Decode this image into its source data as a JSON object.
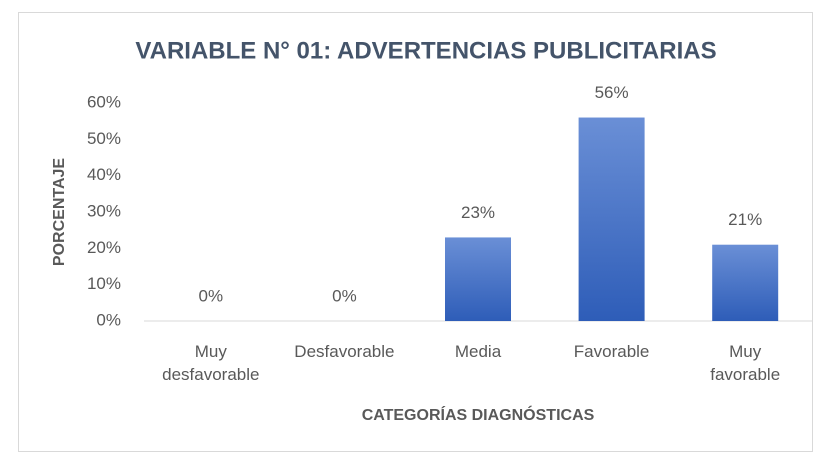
{
  "chart_data": {
    "type": "bar",
    "title": "VARIABLE N° 01: ADVERTENCIAS PUBLICITARIAS",
    "x_label": "CATEGORÍAS DIAGNÓSTICAS",
    "y_label": "PORCENTAJE",
    "categories": [
      "Muy desfavorable",
      "Desfavorable",
      "Media",
      "Favorable",
      "Muy favorable"
    ],
    "values": [
      0,
      0,
      23,
      56,
      21
    ],
    "value_labels": [
      "0%",
      "0%",
      "23%",
      "56%",
      "21%"
    ],
    "color": "#4472c4",
    "ylim": [
      0,
      60
    ],
    "yticks": [
      {
        "value": 0,
        "label": "0%"
      },
      {
        "value": 10,
        "label": "10%"
      },
      {
        "value": 20,
        "label": "20%"
      },
      {
        "value": 30,
        "label": "30%"
      },
      {
        "value": 40,
        "label": "40%"
      },
      {
        "value": 50,
        "label": "50%"
      },
      {
        "value": 60,
        "label": "60%"
      }
    ],
    "grid": false
  }
}
